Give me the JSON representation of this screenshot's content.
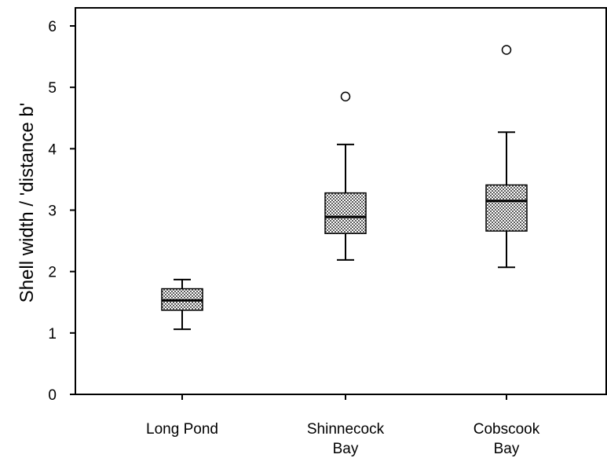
{
  "chart_data": {
    "type": "boxplot",
    "title": "",
    "xlabel": "",
    "ylabel": "Shell width / 'distance b'",
    "ylim": [
      0,
      6
    ],
    "yticks": [
      0,
      1,
      2,
      3,
      4,
      5,
      6
    ],
    "grid": false,
    "box_fill": "crosshatch",
    "categories": [
      {
        "lines": [
          "Long Pond"
        ]
      },
      {
        "lines": [
          "Shinnecock",
          "Bay"
        ]
      },
      {
        "lines": [
          "Cobscook",
          "Bay"
        ]
      }
    ],
    "boxes": [
      {
        "min": 1.06,
        "q1": 1.37,
        "median": 1.53,
        "q3": 1.72,
        "max": 1.87,
        "outliers": []
      },
      {
        "min": 2.19,
        "q1": 2.62,
        "median": 2.89,
        "q3": 3.28,
        "max": 4.07,
        "outliers": [
          4.85
        ]
      },
      {
        "min": 2.07,
        "q1": 2.66,
        "median": 3.15,
        "q3": 3.41,
        "max": 4.27,
        "outliers": [
          5.61
        ]
      }
    ]
  }
}
